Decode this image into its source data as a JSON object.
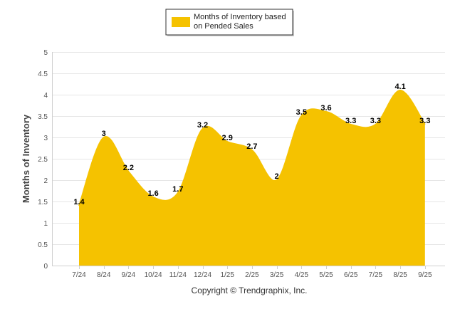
{
  "chart_data": {
    "type": "area",
    "title": "",
    "xlabel": "",
    "ylabel": "Months of Inventory",
    "ylim": [
      0,
      5
    ],
    "yticks": [
      "0",
      "0.5",
      "1",
      "1.5",
      "2",
      "2.5",
      "3",
      "3.5",
      "4",
      "4.5",
      "5"
    ],
    "grid": true,
    "legend_position": "top-center",
    "categories": [
      "7/24",
      "8/24",
      "9/24",
      "10/24",
      "11/24",
      "12/24",
      "1/25",
      "2/25",
      "3/25",
      "4/25",
      "5/25",
      "6/25",
      "7/25",
      "8/25",
      "9/25"
    ],
    "series": [
      {
        "name": "Months of Inventory based on Pended Sales",
        "legend_lines": [
          "Months of Inventory based",
          "on Pended Sales"
        ],
        "color": "#f5c200",
        "values": [
          1.4,
          3,
          2.2,
          1.6,
          1.7,
          3.2,
          2.9,
          2.7,
          2,
          3.5,
          3.6,
          3.3,
          3.3,
          4.1,
          3.3
        ],
        "labels": [
          "1.4",
          "3",
          "2.2",
          "1.6",
          "1.7",
          "3.2",
          "2.9",
          "2.7",
          "2",
          "3.5",
          "3.6",
          "3.3",
          "3.3",
          "4.1",
          "3.3"
        ]
      }
    ]
  },
  "footer": {
    "copyright": "Copyright © Trendgraphix, Inc."
  }
}
